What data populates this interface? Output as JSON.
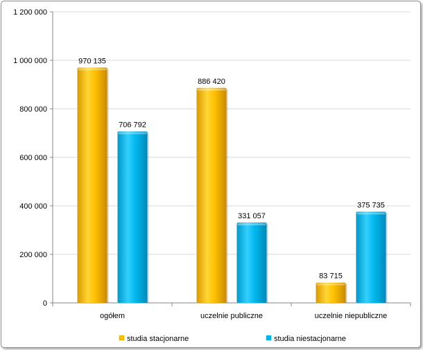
{
  "chart_data": {
    "type": "bar",
    "categories": [
      "ogółem",
      "uczelnie publiczne",
      "uczelnie niepubliczne"
    ],
    "series": [
      {
        "name": "studia stacjonarne",
        "values": [
          970135,
          886420,
          83715
        ],
        "labels": [
          "970 135",
          "886 420",
          "83 715"
        ],
        "color": "#FFC000"
      },
      {
        "name": "studia niestacjonarne",
        "values": [
          706792,
          331057,
          375735
        ],
        "labels": [
          "706 792",
          "331 057",
          "375 735"
        ],
        "color": "#00B8EE"
      }
    ],
    "ylim": [
      0,
      1200000
    ],
    "yticks": [
      0,
      200000,
      400000,
      600000,
      800000,
      1000000,
      1200000
    ],
    "ytick_labels": [
      "0",
      "200 000",
      "400 000",
      "600 000",
      "800 000",
      "1 000 000",
      "1 200 000"
    ],
    "grid": true,
    "legend_position": "bottom",
    "title": "",
    "xlabel": "",
    "ylabel": ""
  }
}
